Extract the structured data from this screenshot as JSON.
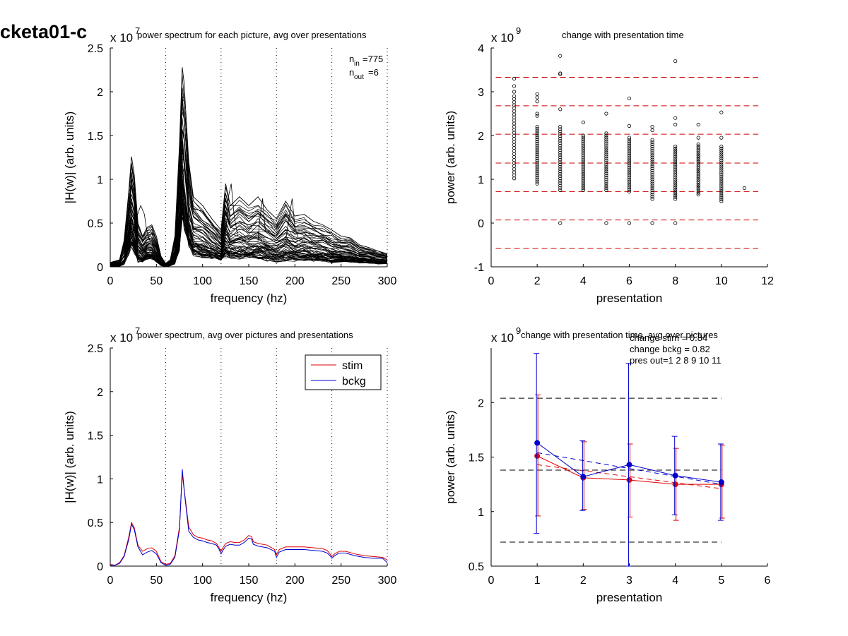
{
  "figure_label": "cketa01-c",
  "chart_data": [
    {
      "id": "spectrum_each",
      "type": "line",
      "title": "power spectrum for each picture, avg over presentations",
      "xlabel": "frequency (hz)",
      "ylabel": "|H(w)| (arb. units)",
      "y_exponent": "x 10",
      "y_exponent_power": "7",
      "xlim": [
        0,
        300
      ],
      "ylim": [
        0,
        2.5
      ],
      "xticks": [
        0,
        50,
        100,
        150,
        200,
        250,
        300
      ],
      "yticks": [
        0,
        0.5,
        1,
        1.5,
        2,
        2.5
      ],
      "vlines": [
        60,
        120,
        180,
        240,
        300
      ],
      "n_in_label": "n",
      "n_in_sub": "in",
      "n_in_value": "=775",
      "n_out_label": "n",
      "n_out_sub": "out",
      "n_out_value": "=6",
      "color": "#000000",
      "mean_curve": {
        "x": [
          0,
          5,
          10,
          15,
          20,
          23,
          26,
          30,
          35,
          40,
          45,
          50,
          55,
          60,
          65,
          70,
          75,
          78,
          80,
          85,
          90,
          95,
          100,
          110,
          120,
          125,
          130,
          140,
          150,
          160,
          170,
          180,
          190,
          200,
          210,
          220,
          230,
          240,
          250,
          260,
          270,
          280,
          290,
          300
        ],
        "y": [
          0.02,
          0.01,
          0.03,
          0.12,
          0.32,
          0.45,
          0.42,
          0.25,
          0.14,
          0.2,
          0.22,
          0.16,
          0.05,
          0.02,
          0.03,
          0.12,
          0.4,
          0.95,
          0.9,
          0.55,
          0.38,
          0.33,
          0.3,
          0.28,
          0.18,
          0.26,
          0.27,
          0.27,
          0.33,
          0.24,
          0.22,
          0.16,
          0.22,
          0.21,
          0.22,
          0.2,
          0.19,
          0.12,
          0.17,
          0.15,
          0.13,
          0.12,
          0.1,
          0.08
        ]
      },
      "envelope": {
        "x": [
          0,
          10,
          15,
          20,
          23,
          26,
          30,
          35,
          40,
          45,
          50,
          55,
          60,
          65,
          70,
          75,
          78,
          80,
          85,
          90,
          100,
          110,
          120,
          125,
          130,
          140,
          150,
          160,
          170,
          180,
          190,
          200,
          210,
          220,
          230,
          240,
          250,
          260,
          270,
          280,
          290,
          300
        ],
        "y_min": [
          0,
          0,
          0.02,
          0.12,
          0.2,
          0.15,
          0.05,
          0.05,
          0.08,
          0.08,
          0.05,
          0.01,
          0,
          0.01,
          0.03,
          0.15,
          0.5,
          0.4,
          0.2,
          0.12,
          0.1,
          0.09,
          0.07,
          0.08,
          0.09,
          0.08,
          0.09,
          0.07,
          0.06,
          0.05,
          0.06,
          0.06,
          0.06,
          0.06,
          0.05,
          0.04,
          0.05,
          0.05,
          0.04,
          0.04,
          0.03,
          0.03
        ],
        "y_max": [
          0.05,
          0.08,
          0.3,
          0.85,
          1.26,
          1.05,
          0.5,
          0.35,
          0.45,
          0.48,
          0.35,
          0.12,
          0.04,
          0.08,
          0.35,
          1.4,
          2.28,
          2.1,
          1.2,
          0.8,
          0.7,
          0.55,
          0.42,
          0.95,
          0.7,
          0.8,
          0.7,
          0.8,
          0.65,
          0.55,
          0.75,
          0.58,
          0.6,
          0.52,
          0.48,
          0.42,
          0.35,
          0.33,
          0.25,
          0.22,
          0.18,
          0.15
        ]
      },
      "traces": 60,
      "curves": [
        {
          "x": [
            25,
            29,
            33,
            37,
            39,
            41,
            43
          ],
          "y": [
            0.4,
            0.58,
            0.7,
            0.6,
            0.45,
            0.35,
            0.3
          ],
          "note": ""
        },
        {
          "x": [
            125,
            128,
            131,
            134,
            138
          ],
          "y": [
            0.35,
            0.8,
            0.95,
            0.6,
            0.35
          ]
        },
        {
          "x": [
            160,
            162,
            165,
            168
          ],
          "y": [
            0.3,
            0.55,
            0.78,
            0.4
          ]
        },
        {
          "x": [
            190,
            193,
            197,
            200,
            204
          ],
          "y": [
            0.3,
            0.52,
            0.78,
            0.45,
            0.32
          ]
        }
      ]
    },
    {
      "id": "change_with_pres",
      "type": "scatter",
      "title": "change with presentation time",
      "xlabel": "presentation",
      "ylabel": "power (arb. units)",
      "y_exponent": "x 10",
      "y_exponent_power": "9",
      "xlim": [
        0,
        12
      ],
      "ylim": [
        -1,
        4
      ],
      "xticks": [
        0,
        2,
        4,
        6,
        8,
        10,
        12
      ],
      "yticks": [
        -1,
        0,
        1,
        2,
        3,
        4
      ],
      "hlines": [
        3.33,
        2.68,
        2.03,
        1.37,
        0.72,
        0.07,
        -0.58
      ],
      "hline_color": "#cc0000",
      "columns": [
        {
          "x": 1,
          "min": 1.02,
          "max": 2.9,
          "outliers": [
            3.0,
            3.13,
            3.3
          ]
        },
        {
          "x": 2,
          "min": 0.9,
          "max": 2.2,
          "outliers": [
            2.45,
            2.5,
            2.78,
            2.87,
            2.95
          ]
        },
        {
          "x": 3,
          "min": 0.75,
          "max": 2.2,
          "outliers": [
            2.6,
            3.4,
            3.42,
            3.82,
            0.0
          ]
        },
        {
          "x": 4,
          "min": 0.75,
          "max": 2.0,
          "outliers": [
            2.3
          ]
        },
        {
          "x": 5,
          "min": 0.75,
          "max": 2.05,
          "outliers": [
            2.5,
            0.0
          ]
        },
        {
          "x": 6,
          "min": 0.72,
          "max": 1.95,
          "outliers": [
            2.22,
            2.85,
            0.0
          ]
        },
        {
          "x": 7,
          "min": 0.55,
          "max": 1.9,
          "outliers": [
            2.12,
            2.2,
            0.0
          ]
        },
        {
          "x": 8,
          "min": 0.55,
          "max": 1.75,
          "outliers": [
            2.25,
            2.4,
            3.7,
            0.0
          ]
        },
        {
          "x": 9,
          "min": 0.65,
          "max": 1.8,
          "outliers": [
            1.95,
            2.25
          ]
        },
        {
          "x": 10,
          "min": 0.5,
          "max": 1.75,
          "outliers": [
            1.95,
            2.53
          ]
        },
        {
          "x": 11,
          "min": 0.8,
          "max": 0.8,
          "outliers": []
        }
      ]
    },
    {
      "id": "spectrum_avg",
      "type": "line",
      "title": "power spectrum, avg over pictures and presentations",
      "xlabel": "frequency (hz)",
      "ylabel": "|H(w)| (arb. units)",
      "y_exponent": "x 10",
      "y_exponent_power": "7",
      "xlim": [
        0,
        300
      ],
      "ylim": [
        0,
        2.5
      ],
      "xticks": [
        0,
        50,
        100,
        150,
        200,
        250,
        300
      ],
      "yticks": [
        0,
        0.5,
        1,
        1.5,
        2,
        2.5
      ],
      "vlines": [
        60,
        120,
        180,
        240,
        300
      ],
      "legend_position": "top-right",
      "x": [
        0,
        5,
        10,
        15,
        20,
        23,
        26,
        30,
        35,
        40,
        45,
        50,
        55,
        60,
        65,
        70,
        75,
        78,
        81,
        85,
        90,
        95,
        100,
        105,
        110,
        115,
        118,
        120,
        122,
        125,
        130,
        135,
        140,
        145,
        150,
        153,
        155,
        160,
        170,
        178,
        180,
        183,
        190,
        200,
        210,
        220,
        230,
        235,
        238,
        240,
        243,
        248,
        255,
        265,
        275,
        285,
        295,
        300
      ],
      "series": [
        {
          "name": "stim",
          "color": "#dd0000",
          "values": [
            0.02,
            0.01,
            0.04,
            0.12,
            0.33,
            0.5,
            0.44,
            0.24,
            0.17,
            0.2,
            0.21,
            0.17,
            0.05,
            0.02,
            0.03,
            0.12,
            0.45,
            1.05,
            0.8,
            0.45,
            0.36,
            0.33,
            0.32,
            0.3,
            0.29,
            0.26,
            0.21,
            0.17,
            0.21,
            0.26,
            0.28,
            0.27,
            0.27,
            0.3,
            0.35,
            0.34,
            0.28,
            0.26,
            0.24,
            0.19,
            0.13,
            0.19,
            0.22,
            0.22,
            0.22,
            0.21,
            0.2,
            0.18,
            0.14,
            0.11,
            0.14,
            0.17,
            0.17,
            0.14,
            0.12,
            0.11,
            0.1,
            0.07
          ]
        },
        {
          "name": "bckg",
          "color": "#0000cc",
          "values": [
            0.01,
            0.01,
            0.03,
            0.11,
            0.3,
            0.48,
            0.42,
            0.22,
            0.13,
            0.16,
            0.18,
            0.14,
            0.04,
            0.01,
            0.02,
            0.1,
            0.42,
            1.11,
            0.78,
            0.4,
            0.33,
            0.3,
            0.29,
            0.27,
            0.26,
            0.24,
            0.19,
            0.14,
            0.18,
            0.23,
            0.25,
            0.24,
            0.24,
            0.27,
            0.32,
            0.31,
            0.25,
            0.23,
            0.21,
            0.17,
            0.1,
            0.16,
            0.19,
            0.19,
            0.19,
            0.18,
            0.17,
            0.15,
            0.12,
            0.09,
            0.12,
            0.15,
            0.15,
            0.12,
            0.1,
            0.09,
            0.09,
            0.04
          ]
        }
      ]
    },
    {
      "id": "change_avg",
      "type": "line",
      "title": "change with presentation time, avg over pictures",
      "xlabel": "presentation",
      "ylabel": "power (arb. units)",
      "y_exponent": "x 10",
      "y_exponent_power": "9",
      "xlim": [
        0,
        6
      ],
      "ylim": [
        0.5,
        2.5
      ],
      "xticks": [
        0,
        1,
        2,
        3,
        4,
        5,
        6
      ],
      "yticks": [
        0.5,
        1,
        1.5,
        2
      ],
      "hlines": [
        2.04,
        1.38,
        0.72
      ],
      "hline_color": "#000000",
      "annotations": [
        "change stim = 0.84",
        "change bckg = 0.82",
        "pres out=1 2 8 9 10 11"
      ],
      "x": [
        1,
        2,
        3,
        4,
        5
      ],
      "series": [
        {
          "name": "stim",
          "color": "#dd0000",
          "values": [
            1.51,
            1.31,
            1.29,
            1.25,
            1.25
          ],
          "err_low": [
            0.96,
            1.02,
            0.95,
            0.92,
            0.94
          ],
          "err_high": [
            2.07,
            1.64,
            1.62,
            1.58,
            1.61
          ],
          "fit": [
            1.43,
            1.21
          ]
        },
        {
          "name": "bckg",
          "color": "#0000cc",
          "values": [
            1.63,
            1.32,
            1.43,
            1.33,
            1.27
          ],
          "err_low": [
            0.8,
            1.01,
            0.5,
            0.97,
            0.92
          ],
          "err_high": [
            2.45,
            1.65,
            2.36,
            1.69,
            1.62
          ],
          "fit": [
            1.54,
            1.25
          ]
        }
      ]
    }
  ]
}
